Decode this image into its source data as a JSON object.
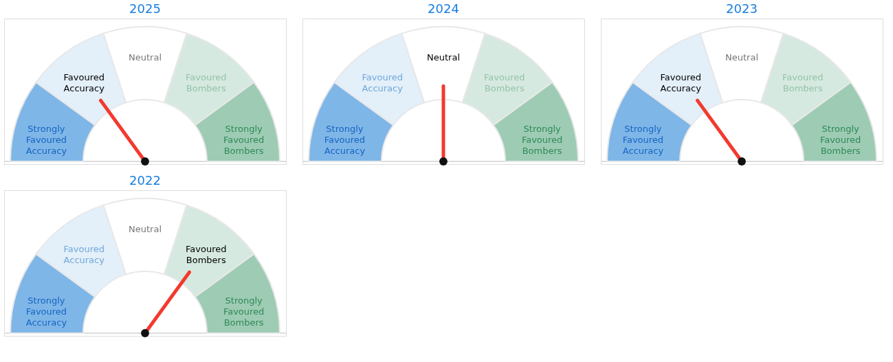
{
  "chart_data": [
    {
      "type": "donut",
      "title": "2025",
      "categories": [
        "Strongly Favoured Accuracy",
        "Favoured Accuracy",
        "Neutral",
        "Favoured Bombers",
        "Strongly Favoured Bombers"
      ],
      "values": [
        20,
        20,
        20,
        20,
        20
      ],
      "colors": [
        "#7fb6e8",
        "#e3eff9",
        "#ffffff",
        "#d6e9e0",
        "#9ecbb4"
      ],
      "needle": "Favoured Accuracy"
    },
    {
      "type": "donut",
      "title": "2024",
      "categories": [
        "Strongly Favoured Accuracy",
        "Favoured Accuracy",
        "Neutral",
        "Favoured Bombers",
        "Strongly Favoured Bombers"
      ],
      "values": [
        20,
        20,
        20,
        20,
        20
      ],
      "colors": [
        "#7fb6e8",
        "#e3eff9",
        "#ffffff",
        "#d6e9e0",
        "#9ecbb4"
      ],
      "needle": "Neutral"
    },
    {
      "type": "donut",
      "title": "2023",
      "categories": [
        "Strongly Favoured Accuracy",
        "Favoured Accuracy",
        "Neutral",
        "Favoured Bombers",
        "Strongly Favoured Bombers"
      ],
      "values": [
        20,
        20,
        20,
        20,
        20
      ],
      "colors": [
        "#7fb6e8",
        "#e3eff9",
        "#ffffff",
        "#d6e9e0",
        "#9ecbb4"
      ],
      "needle": "Favoured Accuracy"
    },
    {
      "type": "donut",
      "title": "2022",
      "categories": [
        "Strongly Favoured Accuracy",
        "Favoured Accuracy",
        "Neutral",
        "Favoured Bombers",
        "Strongly Favoured Bombers"
      ],
      "values": [
        20,
        20,
        20,
        20,
        20
      ],
      "colors": [
        "#7fb6e8",
        "#e3eff9",
        "#ffffff",
        "#d6e9e0",
        "#9ecbb4"
      ],
      "needle": "Favoured Bombers"
    }
  ]
}
